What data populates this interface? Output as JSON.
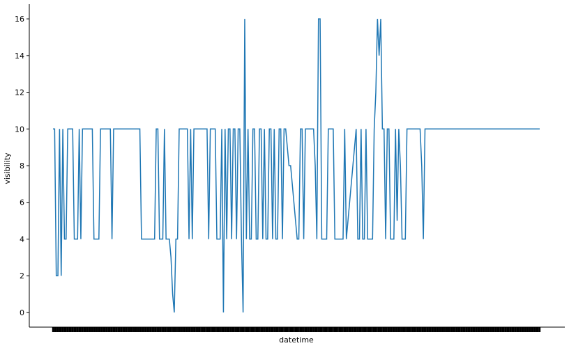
{
  "chart_data": {
    "type": "line",
    "xlabel": "datetime",
    "ylabel": "visibility",
    "ylim": [
      -0.8,
      16.8
    ],
    "yticks": [
      0,
      2,
      4,
      6,
      8,
      10,
      12,
      14,
      16
    ],
    "xtick_labels_legible": false,
    "x_points": 300,
    "grid": false,
    "legend": "none",
    "line_color": "#1f77b4",
    "series": [
      {
        "values": [
          10,
          10,
          2,
          2,
          10,
          2,
          10,
          4,
          4,
          10,
          10,
          10,
          10,
          4,
          4,
          4,
          10,
          4,
          10,
          10,
          10,
          10,
          10,
          10,
          10,
          4,
          4,
          4,
          4,
          10,
          10,
          10,
          10,
          10,
          10,
          10,
          4,
          10,
          10,
          10,
          10,
          10,
          10,
          10,
          10,
          10,
          10,
          10,
          10,
          10,
          10,
          10,
          10,
          10,
          4,
          4,
          4,
          4,
          4,
          4,
          4,
          4,
          4,
          10,
          10,
          4,
          4,
          4,
          10,
          4,
          4,
          4,
          3,
          1,
          0,
          4,
          4,
          10,
          10,
          10,
          10,
          10,
          10,
          4,
          10,
          4,
          10,
          10,
          10,
          10,
          10,
          10,
          10,
          10,
          10,
          4,
          10,
          10,
          10,
          10,
          4,
          4,
          4,
          10,
          0,
          10,
          4,
          10,
          10,
          4,
          10,
          10,
          4,
          10,
          10,
          4,
          0,
          16,
          4,
          10,
          4,
          4,
          10,
          10,
          4,
          4,
          10,
          10,
          4,
          10,
          4,
          4,
          10,
          10,
          4,
          10,
          4,
          4,
          10,
          10,
          4,
          10,
          10,
          9,
          8,
          8,
          7,
          6,
          5,
          4,
          4,
          10,
          10,
          4,
          10,
          10,
          10,
          10,
          10,
          10,
          8,
          4,
          16,
          16,
          4,
          4,
          4,
          4,
          10,
          10,
          10,
          10,
          4,
          4,
          4,
          4,
          4,
          4,
          10,
          4,
          5,
          6,
          7,
          8,
          9,
          10,
          4,
          4,
          10,
          4,
          4,
          10,
          4,
          4,
          4,
          4,
          10,
          12,
          16,
          14,
          16,
          10,
          10,
          4,
          10,
          10,
          4,
          4,
          4,
          10,
          5,
          10,
          8,
          4,
          4,
          4,
          10,
          10,
          10,
          10,
          10,
          10,
          10,
          10,
          10,
          8,
          4,
          10,
          10,
          10,
          10,
          10,
          10,
          10,
          10,
          10,
          10,
          10,
          10,
          10,
          10,
          10,
          10,
          10,
          10,
          10,
          10,
          10,
          10,
          10,
          10,
          10,
          10,
          10,
          10,
          10,
          10,
          10,
          10,
          10,
          10,
          10,
          10,
          10,
          10,
          10,
          10,
          10,
          10,
          10,
          10,
          10,
          10,
          10,
          10,
          10,
          10,
          10,
          10,
          10,
          10,
          10,
          10,
          10,
          10,
          10,
          10,
          10,
          10,
          10,
          10,
          10,
          10,
          10,
          10,
          10,
          10,
          10
        ]
      }
    ]
  }
}
